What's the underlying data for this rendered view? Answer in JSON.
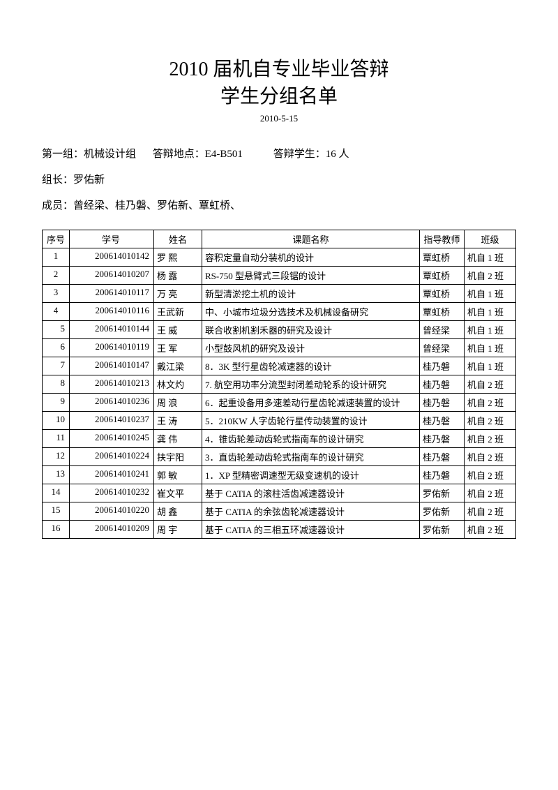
{
  "title_main": "2010 届机自专业毕业答辩",
  "title_sub": "学生分组名单",
  "date": "2010-5-15",
  "meta": {
    "group_label": "第一组：机械设计组",
    "location_label": "答辩地点：E4-B501",
    "student_count_label": "答辩学生：16 人",
    "leader_label": "组长：罗佑新",
    "members_label": "成员：曾经梁、桂乃磐、罗佑新、覃虹桥、"
  },
  "columns": {
    "seq": "序号",
    "id": "学号",
    "name": "姓名",
    "topic": "课题名称",
    "advisor": "指导教师",
    "class": "班级"
  },
  "rows": [
    {
      "seq": "1",
      "id": "200614010142",
      "name": "罗 熙",
      "topic": "容积定量自动分装机的设计",
      "advisor": "覃虹桥",
      "class": "机自 1 班"
    },
    {
      "seq": "2",
      "id": "200614010207",
      "name": "杨 露",
      "topic": "RS-750 型悬臂式三段锯的设计",
      "advisor": "覃虹桥",
      "class": "机自 2 班"
    },
    {
      "seq": "3",
      "id": "200614010117",
      "name": "万 亮",
      "topic": "新型清淤挖土机的设计",
      "advisor": "覃虹桥",
      "class": "机自 1 班"
    },
    {
      "seq": "4",
      "id": "200614010116",
      "name": "王武新",
      "topic": "中、小城市垃圾分选技术及机械设备研究",
      "advisor": "覃虹桥",
      "class": "机自 1 班"
    },
    {
      "seq": "5",
      "id": "200614010144",
      "name": "王 威",
      "topic": "联合收割机割禾器的研究及设计",
      "advisor": "曾经梁",
      "class": "机自 1 班"
    },
    {
      "seq": "6",
      "id": "200614010119",
      "name": "王 军",
      "topic": "小型鼓风机的研究及设计",
      "advisor": "曾经梁",
      "class": "机自 1 班"
    },
    {
      "seq": "7",
      "id": "200614010147",
      "name": "戴江梁",
      "topic": "8．3K 型行星齿轮减速器的设计",
      "advisor": "桂乃磐",
      "class": "机自 1 班"
    },
    {
      "seq": "8",
      "id": "200614010213",
      "name": "林文灼",
      "topic": "7. 航空用功率分流型封闭差动轮系的设计研究",
      "advisor": "桂乃磐",
      "class": "机自 2 班"
    },
    {
      "seq": "9",
      "id": "200614010236",
      "name": "周 浪",
      "topic": "6．起重设备用多速差动行星齿轮减速装置的设计",
      "advisor": "桂乃磐",
      "class": "机自 2 班"
    },
    {
      "seq": "10",
      "id": "200614010237",
      "name": "王 涛",
      "topic": "5．210KW 人字齿轮行星传动装置的设计",
      "advisor": "桂乃磐",
      "class": "机自 2 班"
    },
    {
      "seq": "11",
      "id": "200614010245",
      "name": "龚 伟",
      "topic": "4．锥齿轮差动齿轮式指南车的设计研究",
      "advisor": "桂乃磐",
      "class": "机自 2 班"
    },
    {
      "seq": "12",
      "id": "200614010224",
      "name": "扶宇阳",
      "topic": "3．直齿轮差动齿轮式指南车的设计研究",
      "advisor": "桂乃磐",
      "class": "机自 2 班"
    },
    {
      "seq": "13",
      "id": "200614010241",
      "name": "郭 敏",
      "topic": "1．XP 型精密调速型无级变速机的设计",
      "advisor": "桂乃磐",
      "class": "机自 2 班"
    },
    {
      "seq": "14",
      "id": "200614010232",
      "name": "崔文平",
      "topic": "基于 CATIA 的滚柱活齿减速器设计",
      "advisor": "罗佑新",
      "class": "机自 2 班"
    },
    {
      "seq": "15",
      "id": "200614010220",
      "name": "胡 鑫",
      "topic": "基于 CATIA 的余弦齿轮减速器设计",
      "advisor": "罗佑新",
      "class": "机自 2 班"
    },
    {
      "seq": "16",
      "id": "200614010209",
      "name": "周 宇",
      "topic": "基于 CATIA 的三相五环减速器设计",
      "advisor": "罗佑新",
      "class": "机自 2 班"
    }
  ]
}
